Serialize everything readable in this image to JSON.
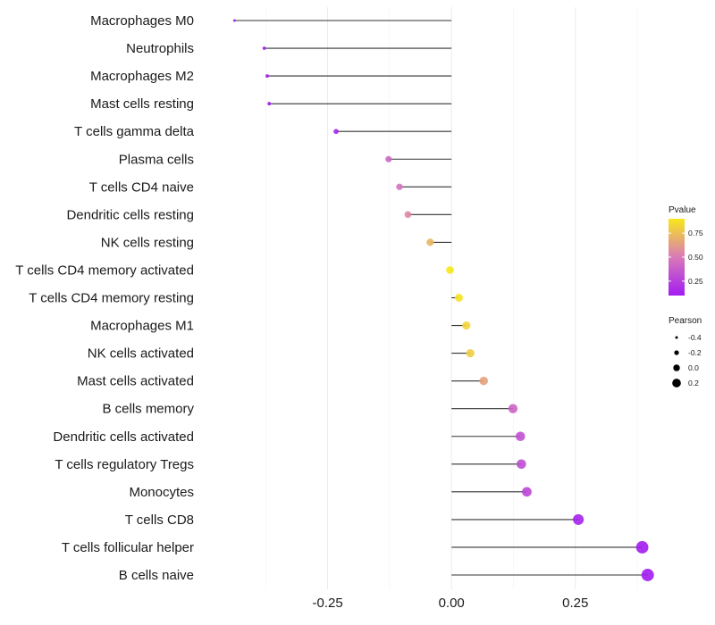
{
  "chart_data": {
    "type": "lollipop",
    "xlim": [
      -0.5,
      0.42
    ],
    "x_ticks": [
      -0.25,
      0.0,
      0.25
    ],
    "x_tick_labels": [
      "-0.25",
      "0.00",
      "0.25"
    ],
    "grid": true,
    "legend_position": "right",
    "color_legend": {
      "title": "Pvalue",
      "ticks": [
        0.25,
        0.5,
        0.75
      ],
      "tick_labels": [
        "0.25",
        "0.50",
        "0.75"
      ],
      "range": [
        0.1,
        0.9
      ],
      "low_color": "#a21cf0",
      "mid_color": "#d97ab8",
      "high_color": "#f8e81a"
    },
    "size_legend": {
      "title": "Pearson",
      "values": [
        -0.4,
        -0.2,
        0.0,
        0.2
      ],
      "labels": [
        "-0.4",
        "-0.2",
        "0.0",
        "0.2"
      ]
    },
    "categories": [
      "Macrophages M0",
      "Neutrophils",
      "Macrophages M2",
      "Mast cells resting",
      "T cells gamma delta",
      "Plasma cells",
      "T cells CD4 naive",
      "Dendritic cells resting",
      "NK cells resting",
      "T cells CD4 memory activated",
      "T cells CD4 memory resting",
      "Macrophages M1",
      "NK cells activated",
      "Mast cells activated",
      "B cells memory",
      "Dendritic cells activated",
      "T cells regulatory  Tregs ",
      "Monocytes",
      "T cells CD8",
      "T cells follicular helper",
      "B cells naive"
    ],
    "values": [
      -0.438,
      -0.378,
      -0.372,
      -0.368,
      -0.233,
      -0.127,
      -0.105,
      -0.088,
      -0.043,
      -0.003,
      0.015,
      0.03,
      0.038,
      0.065,
      0.124,
      0.139,
      0.141,
      0.152,
      0.256,
      0.385,
      0.396
    ],
    "pvalues": [
      0.03,
      0.04,
      0.04,
      0.05,
      0.15,
      0.42,
      0.47,
      0.55,
      0.72,
      0.92,
      0.88,
      0.83,
      0.8,
      0.65,
      0.4,
      0.32,
      0.3,
      0.28,
      0.12,
      0.06,
      0.05
    ]
  }
}
